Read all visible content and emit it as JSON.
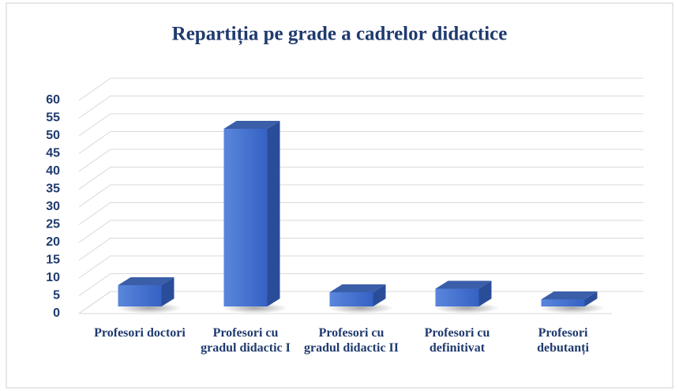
{
  "chart_data": {
    "type": "bar3d",
    "title": "Repartiția pe grade a cadrelor didactice",
    "categories": [
      "Profesori doctori",
      "Profesori cu gradul didactic I",
      "Profesori cu gradul didactic II",
      "Profesori cu definitivat",
      "Profesori debutanți"
    ],
    "values": [
      6,
      50,
      4,
      5,
      2
    ],
    "color": "#3f6fd0",
    "ylim": [
      0,
      60
    ],
    "yticks": [
      0,
      5,
      10,
      15,
      20,
      25,
      30,
      35,
      40,
      45,
      50,
      55,
      60
    ],
    "grid": true
  }
}
